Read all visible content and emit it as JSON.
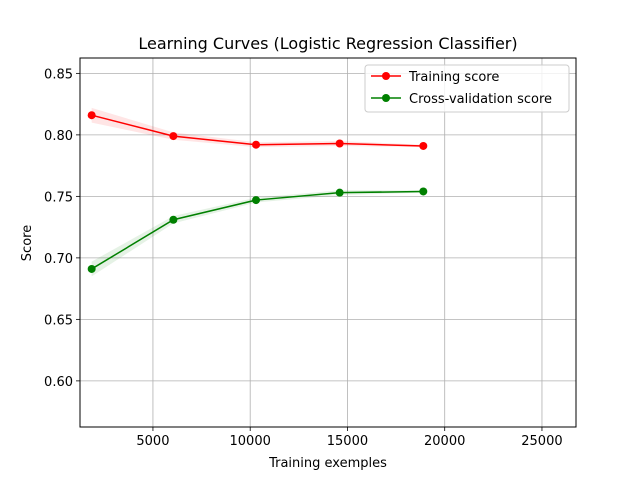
{
  "chart_data": {
    "type": "line",
    "title": "Learning Curves (Logistic Regression Classifier)",
    "xlabel": "Training exemples",
    "ylabel": "Score",
    "xlim": [
      1250,
      26750
    ],
    "ylim": [
      0.5625,
      0.8625
    ],
    "xticks": [
      5000,
      10000,
      15000,
      20000,
      25000
    ],
    "xtick_labels": [
      "5000",
      "10000",
      "15000",
      "20000",
      "25000"
    ],
    "yticks": [
      0.6,
      0.65,
      0.7,
      0.75,
      0.8,
      0.85
    ],
    "ytick_labels": [
      "0.60",
      "0.65",
      "0.70",
      "0.75",
      "0.80",
      "0.85"
    ],
    "grid": true,
    "legend_position": "top-right",
    "x": [
      1850,
      6050,
      10300,
      14600,
      18900
    ],
    "series": [
      {
        "name": "Training score",
        "color": "#ff0000",
        "band_color": "#ff0000",
        "values": [
          0.816,
          0.799,
          0.792,
          0.793,
          0.791
        ],
        "band_low": [
          0.81,
          0.796,
          0.79,
          0.791,
          0.79
        ],
        "band_high": [
          0.822,
          0.802,
          0.794,
          0.795,
          0.792
        ]
      },
      {
        "name": "Cross-validation score",
        "color": "#008000",
        "band_color": "#008000",
        "values": [
          0.691,
          0.731,
          0.747,
          0.753,
          0.754
        ],
        "band_low": [
          0.685,
          0.728,
          0.745,
          0.751,
          0.753
        ],
        "band_high": [
          0.697,
          0.734,
          0.749,
          0.755,
          0.755
        ]
      }
    ]
  }
}
